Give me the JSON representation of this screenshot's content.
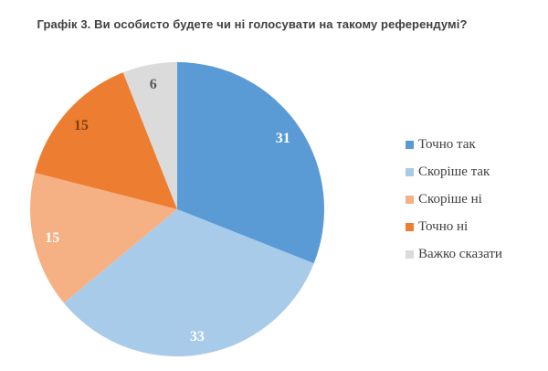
{
  "chart_data": {
    "type": "pie",
    "title": "Графік 3. Ви особисто будете чи ні голосувати на такому референдумі?",
    "categories": [
      "Точно так",
      "Скоріше так",
      "Скоріше ні",
      "Точно ні",
      "Важко сказати"
    ],
    "values": [
      31,
      33,
      15,
      15,
      6
    ],
    "data_labels": [
      "31",
      "33",
      "15",
      "15",
      "6"
    ],
    "colors": [
      "#5B9BD5",
      "#A8CBE9",
      "#F5B183",
      "#ED7D31",
      "#DBDBDB"
    ],
    "data_label_colors": [
      "#FFFFFF",
      "#FFFFFF",
      "#FFFFFF",
      "#843C0C",
      "#595959"
    ],
    "start_angle_deg": 0,
    "direction": "clockwise",
    "legend_position": "right",
    "title_color": "#404040",
    "legend_text_color": "#3F3F3F",
    "background_color": "#FFFFFF"
  }
}
